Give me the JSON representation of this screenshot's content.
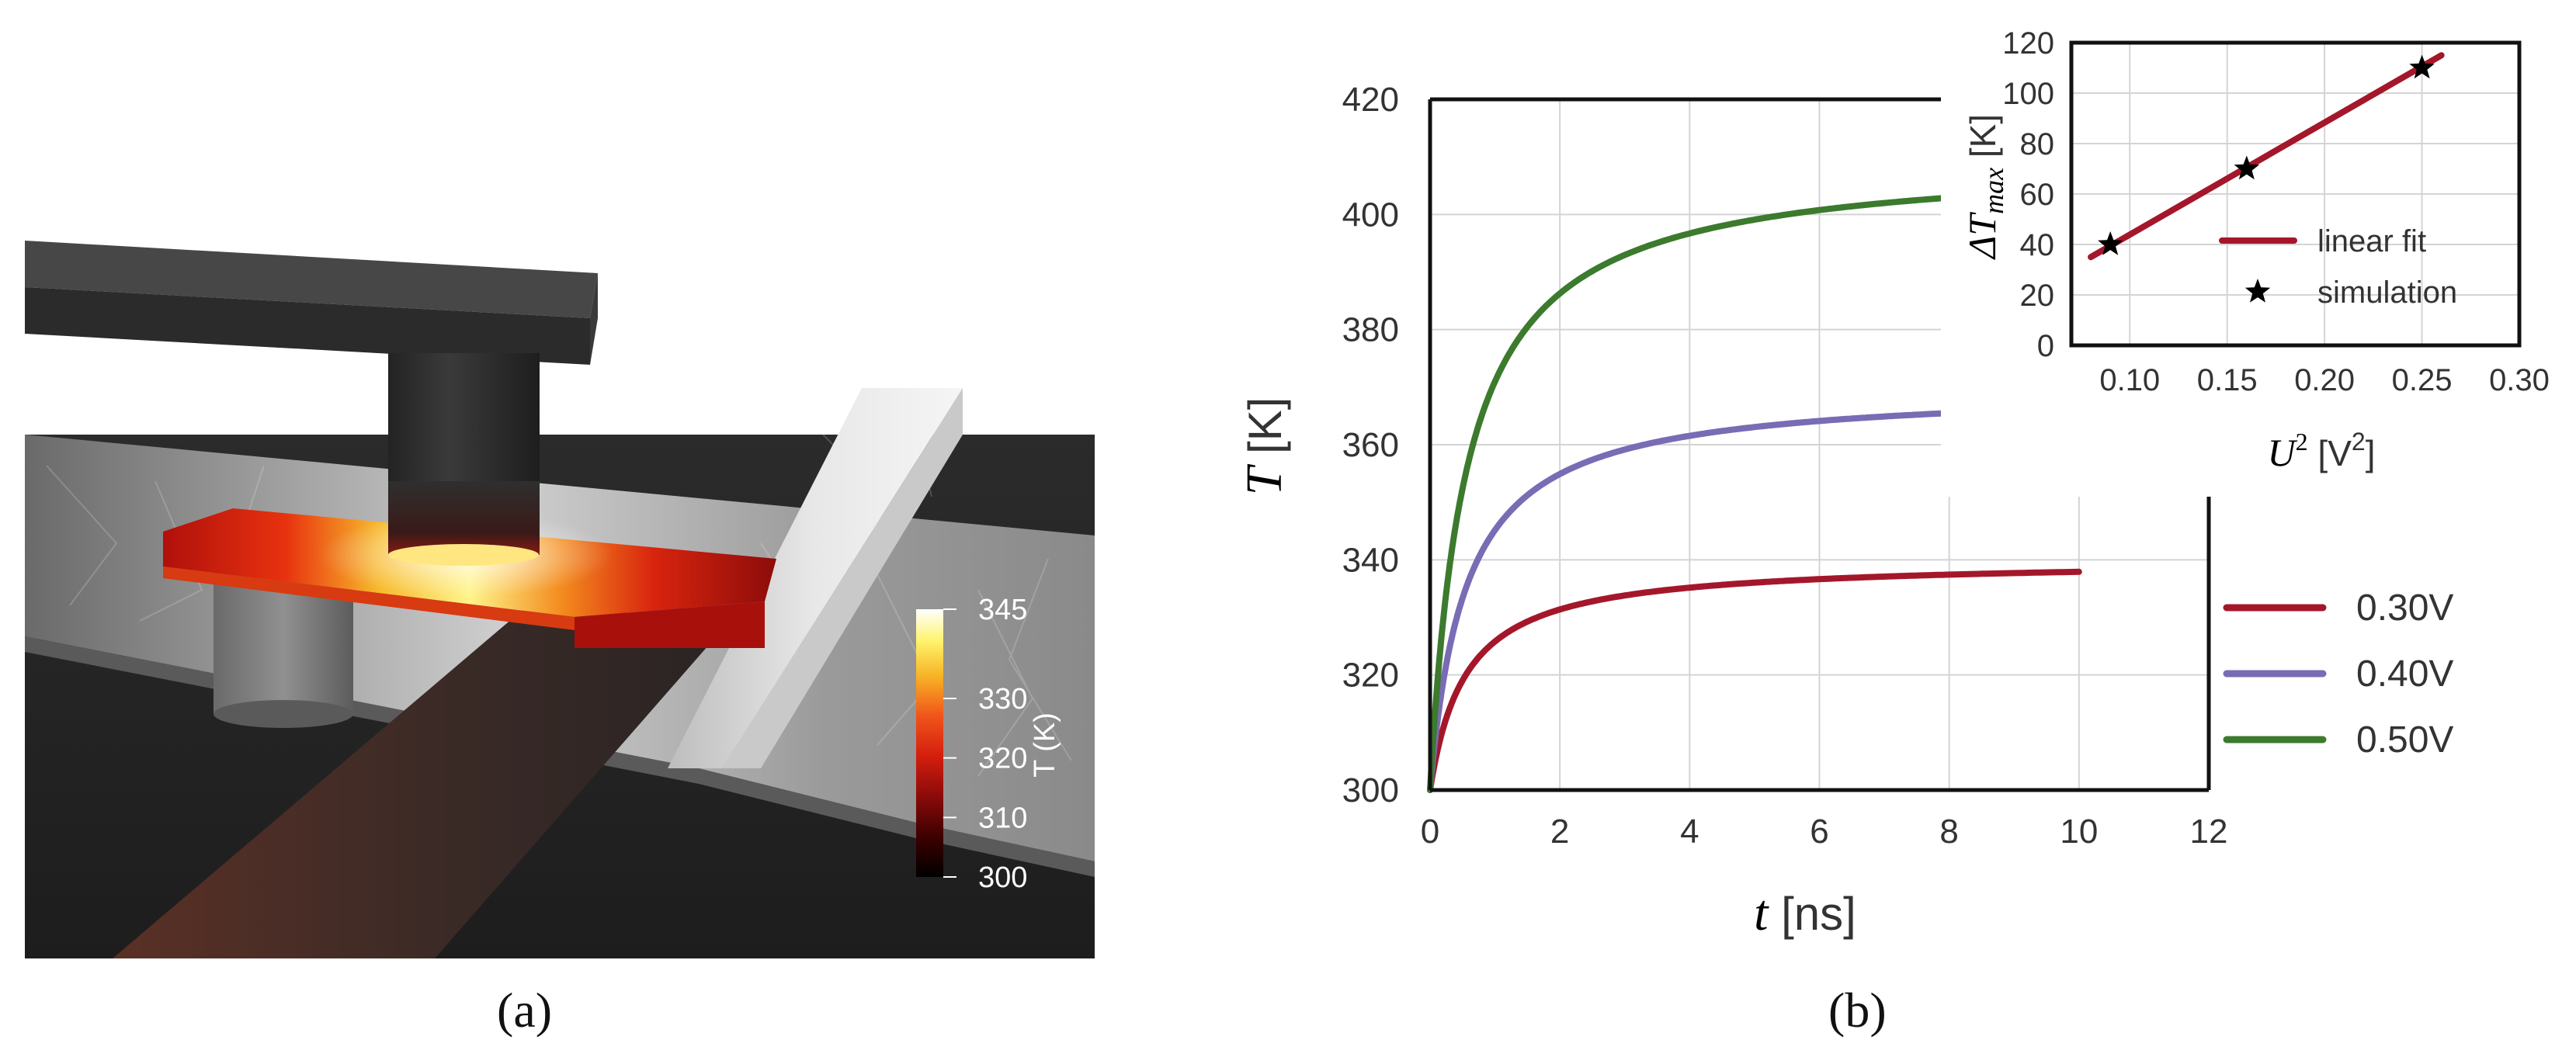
{
  "panel_a": {
    "caption": "(a)",
    "colorbar": {
      "label": "T (K)",
      "ticks": [
        300,
        310,
        320,
        330,
        345
      ],
      "min": 300,
      "max": 345
    },
    "colormap": [
      "#000000",
      "#3d0000",
      "#8a0a0a",
      "#d41e0e",
      "#f0541a",
      "#f7b326",
      "#fff36b",
      "#ffffff"
    ]
  },
  "panel_b": {
    "caption": "(b)",
    "legend_labels": [
      "0.30V",
      "0.40V",
      "0.50V"
    ]
  },
  "chart_data": [
    {
      "type": "line",
      "xlabel_var": "t",
      "xlabel_unit": " [ns]",
      "ylabel_var": "T",
      "ylabel_unit": " [K]",
      "xlim": [
        0,
        12
      ],
      "ylim": [
        300,
        420
      ],
      "xticks": [
        0,
        2,
        4,
        6,
        8,
        10,
        12
      ],
      "yticks": [
        300,
        320,
        340,
        360,
        380,
        400,
        420
      ],
      "grid": true,
      "legend_position": "outside-right",
      "series": [
        {
          "name": "0.30V",
          "color": "#a4172b",
          "dT": 40,
          "tau": 0.55,
          "x": [
            0,
            0.25,
            0.5,
            1,
            2,
            3,
            4,
            5,
            6,
            7,
            8,
            9,
            10
          ],
          "y": [
            300,
            316,
            322.2,
            328.2,
            333.4,
            335.6,
            336.7,
            337.5,
            338.1,
            338.6,
            339,
            339.3,
            339.5
          ]
        },
        {
          "name": "0.40V",
          "color": "#7a6bb5",
          "dT": 70,
          "tau": 0.55,
          "x": [
            0,
            0.25,
            0.5,
            1,
            2,
            3,
            4,
            5,
            6,
            7,
            8
          ],
          "y": [
            300,
            328,
            338.9,
            349.4,
            358.5,
            362.5,
            364.5,
            366.3,
            367.6,
            368.7,
            369.6
          ]
        },
        {
          "name": "0.50V",
          "color": "#3c7a2d",
          "dT": 110,
          "tau": 0.55,
          "x": [
            0,
            0.25,
            0.5,
            1,
            2,
            3,
            4,
            5,
            6,
            7,
            8,
            9,
            10
          ],
          "y": [
            300,
            344,
            361,
            377.5,
            392,
            398.3,
            401.7,
            403.8,
            405.3,
            406.4,
            407.3,
            408,
            408.6
          ]
        }
      ]
    },
    {
      "type": "scatter",
      "xlabel_var": "U",
      "xlabel_unit": " [V",
      "ylabel_var": "ΔT",
      "ylabel_sub": "max",
      "ylabel_unit": " [K]",
      "xlim": [
        0.07,
        0.3
      ],
      "ylim": [
        0,
        120
      ],
      "xticks": [
        0.1,
        0.15,
        0.2,
        0.25,
        0.3
      ],
      "xtick_labels": [
        "0.10",
        "0.15",
        "0.20",
        "0.25",
        "0.30"
      ],
      "yticks": [
        0,
        20,
        40,
        60,
        80,
        100,
        120
      ],
      "grid": true,
      "legend_position": "lower-right",
      "series": [
        {
          "name": "linear fit",
          "style": "line",
          "color": "#a4172b",
          "x": [
            0.08,
            0.26
          ],
          "y": [
            35,
            115
          ]
        },
        {
          "name": "simulation",
          "style": "star",
          "color": "#000000",
          "x": [
            0.09,
            0.16,
            0.25
          ],
          "y": [
            40,
            70,
            110
          ]
        }
      ]
    }
  ]
}
